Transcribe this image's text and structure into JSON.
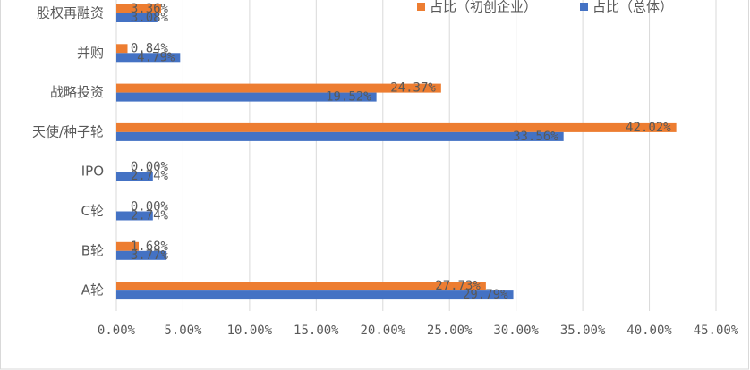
{
  "chart_data": {
    "type": "hbar",
    "categories": [
      "股权再融资",
      "并购",
      "战略投资",
      "天使/种子轮",
      "IPO",
      "C轮",
      "B轮",
      "A轮"
    ],
    "series": [
      {
        "name": "占比（初创企业）",
        "color": "#ed7d31",
        "values": [
          3.36,
          0.84,
          24.37,
          42.02,
          0,
          0,
          1.68,
          27.73
        ],
        "value_labels": [
          "3.36%",
          "0.84%",
          "24.37%",
          "42.02%",
          "0.00%",
          "0.00%",
          "1.68%",
          "27.73%"
        ]
      },
      {
        "name": "占比（总体）",
        "color": "#4472c4",
        "values": [
          3.08,
          4.79,
          19.52,
          33.56,
          2.74,
          2.74,
          3.77,
          29.79
        ],
        "value_labels": [
          "3.08%",
          "4.79%",
          "19.52%",
          "33.56%",
          "2.74%",
          "2.74%",
          "3.77%",
          "29.79%"
        ]
      }
    ],
    "xlim": [
      0,
      45
    ],
    "xticks": [
      {
        "value": 0,
        "label": "0.00%"
      },
      {
        "value": 5,
        "label": "5.00%"
      },
      {
        "value": 10,
        "label": "10.00%"
      },
      {
        "value": 15,
        "label": "15.00%"
      },
      {
        "value": 20,
        "label": "20.00%"
      },
      {
        "value": 25,
        "label": "25.00%"
      },
      {
        "value": 30,
        "label": "30.00%"
      },
      {
        "value": 35,
        "label": "35.00%"
      },
      {
        "value": 40,
        "label": "40.00%"
      },
      {
        "value": 45,
        "label": "45.00%"
      }
    ],
    "grid": true
  }
}
